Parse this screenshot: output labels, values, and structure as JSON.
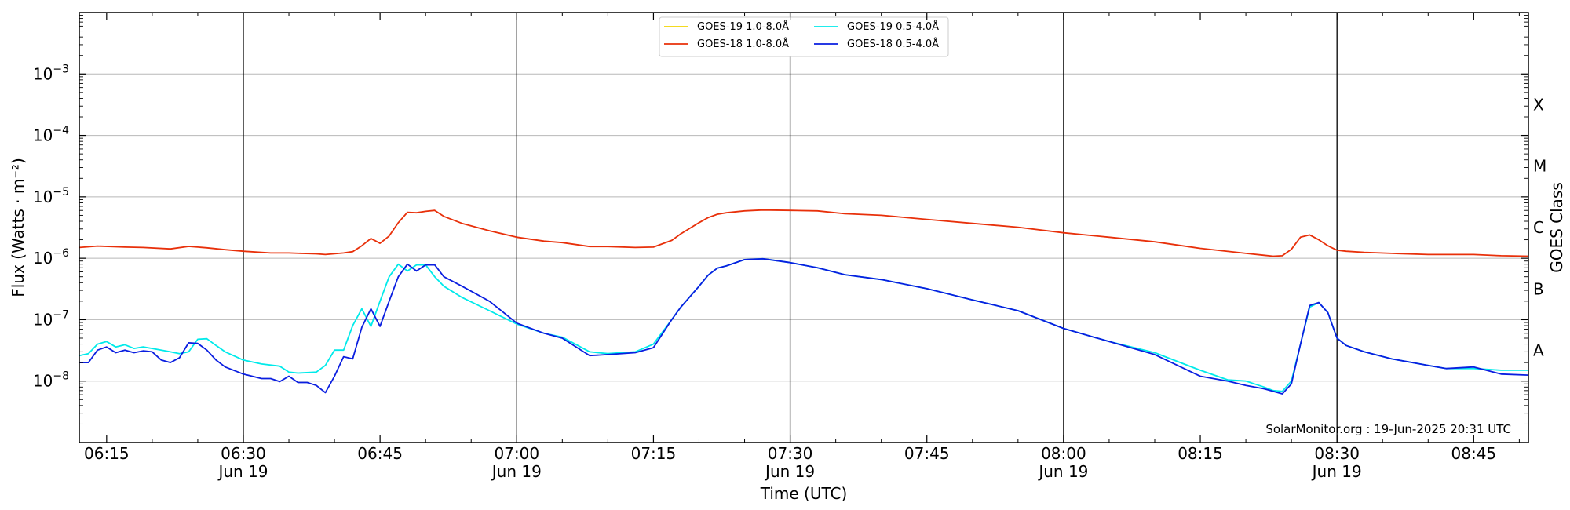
{
  "chart_data": {
    "type": "line",
    "title": "",
    "xlabel": "Time (UTC)",
    "ylabel": "Flux (Watts · m⁻²)",
    "y2label": "GOES Class",
    "yscale": "log",
    "ylim": [
      1e-09,
      0.01
    ],
    "xlim": [
      "06:12",
      "08:51"
    ],
    "x_ticks": [
      {
        "t": "06:15",
        "label": "06:15",
        "date": ""
      },
      {
        "t": "06:30",
        "label": "06:30",
        "date": "Jun 19"
      },
      {
        "t": "06:45",
        "label": "06:45",
        "date": ""
      },
      {
        "t": "07:00",
        "label": "07:00",
        "date": "Jun 19"
      },
      {
        "t": "07:15",
        "label": "07:15",
        "date": ""
      },
      {
        "t": "07:30",
        "label": "07:30",
        "date": "Jun 19"
      },
      {
        "t": "07:45",
        "label": "07:45",
        "date": ""
      },
      {
        "t": "08:00",
        "label": "08:00",
        "date": "Jun 19"
      },
      {
        "t": "08:15",
        "label": "08:15",
        "date": ""
      },
      {
        "t": "08:30",
        "label": "08:30",
        "date": "Jun 19"
      },
      {
        "t": "08:45",
        "label": "08:45",
        "date": ""
      }
    ],
    "y_ticks": [
      {
        "value": 1e-08,
        "base": "10",
        "exp": "−8"
      },
      {
        "value": 1e-07,
        "base": "10",
        "exp": "−7"
      },
      {
        "value": 1e-06,
        "base": "10",
        "exp": "−6"
      },
      {
        "value": 1e-05,
        "base": "10",
        "exp": "−5"
      },
      {
        "value": 0.0001,
        "base": "10",
        "exp": "−4"
      },
      {
        "value": 0.001,
        "base": "10",
        "exp": "−3"
      }
    ],
    "goes_classes": [
      {
        "label": "A",
        "value": 3.16e-08
      },
      {
        "label": "B",
        "value": 3.16e-07
      },
      {
        "label": "C",
        "value": 3.16e-06
      },
      {
        "label": "M",
        "value": 3.16e-05
      },
      {
        "label": "X",
        "value": 0.000316
      }
    ],
    "grid": true,
    "legend_position": "top-center",
    "credit": "SolarMonitor.org : 19-Jun-2025 20:31 UTC",
    "series": [
      {
        "name": "GOES-19 1.0-8.0Å",
        "color": "#f2d400",
        "x": [],
        "y": []
      },
      {
        "name": "GOES-18 1.0-8.0Å",
        "color": "#e8300a",
        "x": [
          "06:12",
          "06:14",
          "06:17",
          "06:19",
          "06:22",
          "06:24",
          "06:26",
          "06:28",
          "06:30",
          "06:33",
          "06:35",
          "06:38",
          "06:39",
          "06:41",
          "06:42",
          "06:43",
          "06:44",
          "06:45",
          "06:46",
          "06:47",
          "06:48",
          "06:49",
          "06:50",
          "06:51",
          "06:52",
          "06:54",
          "06:57",
          "07:00",
          "07:03",
          "07:05",
          "07:08",
          "07:10",
          "07:13",
          "07:15",
          "07:17",
          "07:18",
          "07:20",
          "07:21",
          "07:22",
          "07:23",
          "07:25",
          "07:27",
          "07:30",
          "07:33",
          "07:36",
          "07:40",
          "07:45",
          "07:50",
          "07:55",
          "08:00",
          "08:05",
          "08:10",
          "08:15",
          "08:20",
          "08:22",
          "08:23",
          "08:24",
          "08:25",
          "08:26",
          "08:27",
          "08:28",
          "08:29",
          "08:30",
          "08:31",
          "08:33",
          "08:36",
          "08:40",
          "08:45",
          "08:48",
          "08:51"
        ],
        "y": [
          1.5e-06,
          1.58e-06,
          1.52e-06,
          1.5e-06,
          1.42e-06,
          1.56e-06,
          1.48e-06,
          1.38e-06,
          1.3e-06,
          1.22e-06,
          1.22e-06,
          1.18e-06,
          1.15e-06,
          1.22e-06,
          1.28e-06,
          1.6e-06,
          2.1e-06,
          1.75e-06,
          2.3e-06,
          3.8e-06,
          5.6e-06,
          5.5e-06,
          5.8e-06,
          6e-06,
          4.8e-06,
          3.7e-06,
          2.8e-06,
          2.2e-06,
          1.9e-06,
          1.8e-06,
          1.55e-06,
          1.55e-06,
          1.5e-06,
          1.52e-06,
          1.95e-06,
          2.5e-06,
          3.8e-06,
          4.6e-06,
          5.2e-06,
          5.5e-06,
          5.9e-06,
          6.1e-06,
          6e-06,
          5.9e-06,
          5.3e-06,
          5e-06,
          4.3e-06,
          3.7e-06,
          3.2e-06,
          2.6e-06,
          2.2e-06,
          1.85e-06,
          1.45e-06,
          1.2e-06,
          1.12e-06,
          1.08e-06,
          1.1e-06,
          1.4e-06,
          2.2e-06,
          2.4e-06,
          2e-06,
          1.6e-06,
          1.35e-06,
          1.3e-06,
          1.25e-06,
          1.2e-06,
          1.15e-06,
          1.15e-06,
          1.1e-06,
          1.08e-06
        ]
      },
      {
        "name": "GOES-19 0.5-4.0Å",
        "color": "#00eaea",
        "x": [
          "06:12",
          "06:13",
          "06:14",
          "06:15",
          "06:16",
          "06:17",
          "06:18",
          "06:19",
          "06:20",
          "06:21",
          "06:22",
          "06:23",
          "06:24",
          "06:25",
          "06:26",
          "06:27",
          "06:28",
          "06:30",
          "06:32",
          "06:34",
          "06:35",
          "06:36",
          "06:38",
          "06:39",
          "06:40",
          "06:41",
          "06:42",
          "06:43",
          "06:44",
          "06:45",
          "06:46",
          "06:47",
          "06:48",
          "06:49",
          "06:50",
          "06:51",
          "06:52",
          "06:54",
          "06:57",
          "07:00",
          "07:03",
          "07:05",
          "07:08",
          "07:10",
          "07:13",
          "07:15",
          "07:17",
          "07:18",
          "07:20",
          "07:21",
          "07:22",
          "07:23",
          "07:25",
          "07:27",
          "07:30",
          "07:33",
          "07:36",
          "07:40",
          "07:45",
          "07:50",
          "07:55",
          "08:00",
          "08:05",
          "08:10",
          "08:15",
          "08:18",
          "08:20",
          "08:22",
          "08:23",
          "08:24",
          "08:25",
          "08:26",
          "08:27",
          "08:28",
          "08:29",
          "08:30",
          "08:31",
          "08:33",
          "08:36",
          "08:40",
          "08:42",
          "08:45",
          "08:48",
          "08:51"
        ],
        "y": [
          2.6e-08,
          2.8e-08,
          4e-08,
          4.4e-08,
          3.6e-08,
          3.9e-08,
          3.4e-08,
          3.6e-08,
          3.4e-08,
          3.2e-08,
          3e-08,
          2.8e-08,
          3e-08,
          4.8e-08,
          4.9e-08,
          3.8e-08,
          3e-08,
          2.2e-08,
          1.9e-08,
          1.75e-08,
          1.4e-08,
          1.35e-08,
          1.4e-08,
          1.8e-08,
          3.2e-08,
          3.2e-08,
          8e-08,
          1.5e-07,
          7.8e-08,
          2e-07,
          5e-07,
          8e-07,
          6.2e-07,
          7.8e-07,
          7.8e-07,
          5e-07,
          3.5e-07,
          2.3e-07,
          1.4e-07,
          8.5e-08,
          6e-08,
          5.2e-08,
          3e-08,
          2.8e-08,
          3e-08,
          4e-08,
          1e-07,
          1.6e-07,
          3.5e-07,
          5.3e-07,
          6.9e-07,
          7.5e-07,
          9.5e-07,
          9.8e-07,
          8.5e-07,
          7e-07,
          5.4e-07,
          4.5e-07,
          3.2e-07,
          2.1e-07,
          1.4e-07,
          7.2e-08,
          4.4e-08,
          2.9e-08,
          1.5e-08,
          1.05e-08,
          1e-08,
          8e-09,
          7e-09,
          6.8e-09,
          1e-08,
          4e-08,
          1.6e-07,
          1.9e-07,
          1.3e-07,
          5e-08,
          3.8e-08,
          3e-08,
          2.3e-08,
          1.8e-08,
          1.6e-08,
          1.6e-08,
          1.5e-08,
          1.5e-08
        ]
      },
      {
        "name": "GOES-18 0.5-4.0Å",
        "color": "#0a1ee0",
        "x": [
          "06:12",
          "06:13",
          "06:14",
          "06:15",
          "06:16",
          "06:17",
          "06:18",
          "06:19",
          "06:20",
          "06:21",
          "06:22",
          "06:23",
          "06:24",
          "06:25",
          "06:26",
          "06:27",
          "06:28",
          "06:30",
          "06:32",
          "06:33",
          "06:34",
          "06:35",
          "06:36",
          "06:37",
          "06:38",
          "06:39",
          "06:40",
          "06:41",
          "06:42",
          "06:43",
          "06:44",
          "06:45",
          "06:46",
          "06:47",
          "06:48",
          "06:49",
          "06:50",
          "06:51",
          "06:52",
          "06:54",
          "06:57",
          "07:00",
          "07:03",
          "07:05",
          "07:08",
          "07:10",
          "07:13",
          "07:15",
          "07:17",
          "07:18",
          "07:20",
          "07:21",
          "07:22",
          "07:23",
          "07:25",
          "07:27",
          "07:30",
          "07:33",
          "07:36",
          "07:40",
          "07:45",
          "07:50",
          "07:55",
          "08:00",
          "08:05",
          "08:10",
          "08:15",
          "08:18",
          "08:20",
          "08:22",
          "08:23",
          "08:24",
          "08:25",
          "08:26",
          "08:27",
          "08:28",
          "08:29",
          "08:30",
          "08:31",
          "08:33",
          "08:36",
          "08:40",
          "08:42",
          "08:45",
          "08:48",
          "08:51"
        ],
        "y": [
          2e-08,
          2e-08,
          3.2e-08,
          3.6e-08,
          2.9e-08,
          3.2e-08,
          2.9e-08,
          3.1e-08,
          3e-08,
          2.2e-08,
          2e-08,
          2.4e-08,
          4.2e-08,
          4.1e-08,
          3.2e-08,
          2.2e-08,
          1.7e-08,
          1.3e-08,
          1.1e-08,
          1.1e-08,
          9.8e-09,
          1.2e-08,
          9.5e-09,
          9.5e-09,
          8.5e-09,
          6.5e-09,
          1.2e-08,
          2.5e-08,
          2.3e-08,
          7.5e-08,
          1.5e-07,
          7.8e-08,
          2e-07,
          5e-07,
          8e-07,
          6.2e-07,
          7.8e-07,
          7.8e-07,
          5e-07,
          3.5e-07,
          2e-07,
          8.8e-08,
          6e-08,
          5e-08,
          2.6e-08,
          2.7e-08,
          2.9e-08,
          3.5e-08,
          1e-07,
          1.6e-07,
          3.5e-07,
          5.3e-07,
          6.9e-07,
          7.5e-07,
          9.5e-07,
          9.8e-07,
          8.5e-07,
          7e-07,
          5.4e-07,
          4.5e-07,
          3.2e-07,
          2.1e-07,
          1.4e-07,
          7.2e-08,
          4.4e-08,
          2.7e-08,
          1.2e-08,
          1e-08,
          8.5e-09,
          7.5e-09,
          6.8e-09,
          6.2e-09,
          9e-09,
          4e-08,
          1.7e-07,
          1.9e-07,
          1.3e-07,
          5e-08,
          3.8e-08,
          3e-08,
          2.3e-08,
          1.8e-08,
          1.6e-08,
          1.7e-08,
          1.3e-08,
          1.25e-08
        ]
      }
    ]
  }
}
